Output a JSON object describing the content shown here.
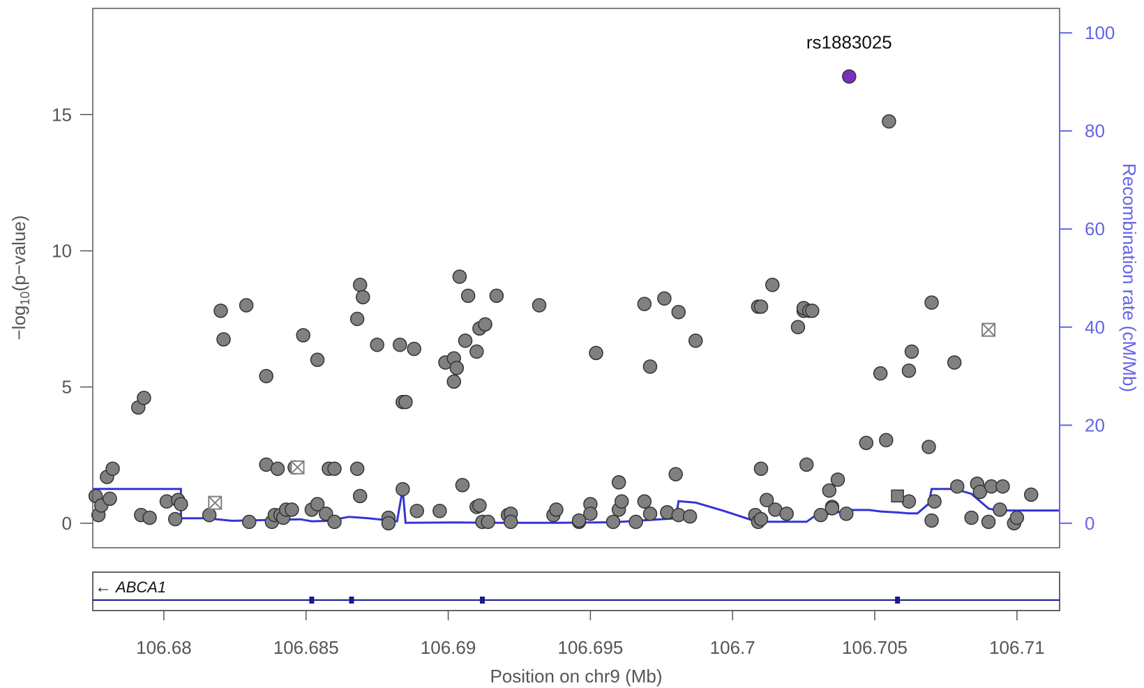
{
  "chart_data": {
    "type": "scatter",
    "title": "",
    "xlabel": "Position on chr9 (Mb)",
    "ylabel_left": "−log₁₀(p−value)",
    "ylabel_right": "Recombination rate (cM/Mb)",
    "xlim": [
      106.6775,
      106.7115
    ],
    "ylim_left": [
      -0.9,
      18.9
    ],
    "ylim_right": [
      -5,
      105
    ],
    "x_ticks": [
      106.68,
      106.685,
      106.69,
      106.695,
      106.7,
      106.705,
      106.71
    ],
    "x_tick_labels": [
      "106.68",
      "106.685",
      "106.69",
      "106.695",
      "106.7",
      "106.705",
      "106.71"
    ],
    "y_left_ticks": [
      0,
      5,
      10,
      15
    ],
    "y_left_tick_labels": [
      "0",
      "5",
      "10",
      "15"
    ],
    "y_right_ticks": [
      0,
      20,
      40,
      60,
      80,
      100
    ],
    "y_right_tick_labels": [
      "0",
      "20",
      "40",
      "60",
      "80",
      "100"
    ],
    "lead_snp": {
      "label": "rs1883025",
      "x": 106.7041,
      "y": 16.4
    },
    "colors": {
      "point": "#808080",
      "lead": "#7b2fbe",
      "recomb": "#3434d8",
      "right_axis": "#6464e6",
      "gene": "#1a1a8c",
      "frame": "#555555"
    },
    "gene": {
      "name": "ABCA1",
      "direction": "←",
      "start": 106.6775,
      "end": 106.7115,
      "exons": [
        106.6852,
        106.6866,
        106.6912,
        106.7058
      ]
    },
    "squares": [
      {
        "x": 106.7058,
        "y": 1.0
      }
    ],
    "crossed_squares": [
      {
        "x": 106.6818,
        "y": 0.75
      },
      {
        "x": 106.6847,
        "y": 2.05
      },
      {
        "x": 106.709,
        "y": 7.1
      }
    ],
    "points": [
      [
        106.6776,
        1.0
      ],
      [
        106.6777,
        0.3
      ],
      [
        106.6778,
        0.65
      ],
      [
        106.678,
        1.7
      ],
      [
        106.6781,
        0.9
      ],
      [
        106.6782,
        2.0
      ],
      [
        106.6791,
        4.25
      ],
      [
        106.6792,
        0.3
      ],
      [
        106.6793,
        4.6
      ],
      [
        106.6795,
        0.2
      ],
      [
        106.6801,
        0.8
      ],
      [
        106.6804,
        0.15
      ],
      [
        106.6805,
        0.85
      ],
      [
        106.6806,
        0.7
      ],
      [
        106.6816,
        0.3
      ],
      [
        106.682,
        7.8
      ],
      [
        106.6821,
        6.75
      ],
      [
        106.6829,
        8.0
      ],
      [
        106.683,
        0.05
      ],
      [
        106.6836,
        5.4
      ],
      [
        106.6836,
        2.15
      ],
      [
        106.6838,
        0.05
      ],
      [
        106.6839,
        0.3
      ],
      [
        106.684,
        2.0
      ],
      [
        106.6841,
        0.3
      ],
      [
        106.6842,
        0.2
      ],
      [
        106.6843,
        0.5
      ],
      [
        106.6845,
        0.5
      ],
      [
        106.6846,
        2.05
      ],
      [
        106.6849,
        6.9
      ],
      [
        106.6852,
        0.5
      ],
      [
        106.6854,
        0.7
      ],
      [
        106.6854,
        6.0
      ],
      [
        106.6857,
        0.35
      ],
      [
        106.6858,
        2.0
      ],
      [
        106.686,
        0.05
      ],
      [
        106.686,
        2.0
      ],
      [
        106.6868,
        2.0
      ],
      [
        106.6868,
        7.5
      ],
      [
        106.6869,
        8.75
      ],
      [
        106.6869,
        1.0
      ],
      [
        106.687,
        8.3
      ],
      [
        106.6875,
        6.55
      ],
      [
        106.6879,
        0.2
      ],
      [
        106.6879,
        0.0
      ],
      [
        106.6883,
        6.55
      ],
      [
        106.6884,
        4.45
      ],
      [
        106.6884,
        1.25
      ],
      [
        106.6885,
        4.45
      ],
      [
        106.6888,
        6.4
      ],
      [
        106.6889,
        0.45
      ],
      [
        106.6897,
        0.45
      ],
      [
        106.6899,
        5.9
      ],
      [
        106.6902,
        6.05
      ],
      [
        106.6902,
        5.2
      ],
      [
        106.6903,
        5.7
      ],
      [
        106.6904,
        9.05
      ],
      [
        106.6905,
        1.4
      ],
      [
        106.6906,
        6.7
      ],
      [
        106.6907,
        8.35
      ],
      [
        106.691,
        0.6
      ],
      [
        106.691,
        6.3
      ],
      [
        106.6911,
        7.15
      ],
      [
        106.6911,
        0.65
      ],
      [
        106.6912,
        0.05
      ],
      [
        106.6913,
        7.3
      ],
      [
        106.6914,
        0.05
      ],
      [
        106.6917,
        8.35
      ],
      [
        106.6921,
        0.3
      ],
      [
        106.6922,
        0.35
      ],
      [
        106.6922,
        0.05
      ],
      [
        106.6932,
        8.0
      ],
      [
        106.6937,
        0.3
      ],
      [
        106.6938,
        0.5
      ],
      [
        106.6946,
        0.05
      ],
      [
        106.6946,
        0.1
      ],
      [
        106.695,
        0.7
      ],
      [
        106.695,
        0.35
      ],
      [
        106.6952,
        6.25
      ],
      [
        106.6958,
        0.05
      ],
      [
        106.696,
        1.5
      ],
      [
        106.696,
        0.5
      ],
      [
        106.6961,
        0.8
      ],
      [
        106.6966,
        0.05
      ],
      [
        106.6969,
        8.05
      ],
      [
        106.6969,
        0.8
      ],
      [
        106.6971,
        5.75
      ],
      [
        106.6971,
        0.35
      ],
      [
        106.6976,
        8.25
      ],
      [
        106.6977,
        0.4
      ],
      [
        106.6977,
        0.4
      ],
      [
        106.698,
        1.8
      ],
      [
        106.6981,
        7.75
      ],
      [
        106.6981,
        0.3
      ],
      [
        106.6985,
        0.25
      ],
      [
        106.6987,
        6.7
      ],
      [
        106.7008,
        0.3
      ],
      [
        106.7009,
        7.95
      ],
      [
        106.7009,
        0.05
      ],
      [
        106.701,
        7.95
      ],
      [
        106.701,
        2.0
      ],
      [
        106.701,
        0.15
      ],
      [
        106.7012,
        0.85
      ],
      [
        106.7014,
        8.75
      ],
      [
        106.7015,
        0.5
      ],
      [
        106.7019,
        0.35
      ],
      [
        106.7023,
        7.2
      ],
      [
        106.7025,
        7.8
      ],
      [
        106.7025,
        7.9
      ],
      [
        106.7026,
        2.15
      ],
      [
        106.7027,
        7.8
      ],
      [
        106.7028,
        7.8
      ],
      [
        106.7031,
        0.3
      ],
      [
        106.7034,
        1.2
      ],
      [
        106.7035,
        0.6
      ],
      [
        106.7035,
        0.55
      ],
      [
        106.7037,
        1.6
      ],
      [
        106.704,
        0.35
      ],
      [
        106.7047,
        2.95
      ],
      [
        106.7052,
        5.5
      ],
      [
        106.7054,
        3.05
      ],
      [
        106.7055,
        14.75
      ],
      [
        106.7062,
        0.8
      ],
      [
        106.7062,
        5.6
      ],
      [
        106.7063,
        6.3
      ],
      [
        106.7069,
        2.8
      ],
      [
        106.707,
        8.1
      ],
      [
        106.707,
        0.1
      ],
      [
        106.7071,
        0.8
      ],
      [
        106.7078,
        5.9
      ],
      [
        106.7079,
        1.35
      ],
      [
        106.7084,
        0.2
      ],
      [
        106.7086,
        1.45
      ],
      [
        106.7087,
        1.15
      ],
      [
        106.709,
        0.05
      ],
      [
        106.7091,
        1.35
      ],
      [
        106.7094,
        0.5
      ],
      [
        106.7095,
        1.35
      ],
      [
        106.7099,
        0.0
      ],
      [
        106.71,
        0.2
      ],
      [
        106.7105,
        1.05
      ]
    ],
    "recomb_rate": [
      [
        106.6775,
        7.0
      ],
      [
        106.6806,
        7.0
      ],
      [
        106.6806,
        1.0
      ],
      [
        106.6815,
        1.0
      ],
      [
        106.6824,
        0.5
      ],
      [
        106.6848,
        0.8
      ],
      [
        106.6852,
        0.4
      ],
      [
        106.6858,
        0.5
      ],
      [
        106.6865,
        1.3
      ],
      [
        106.6872,
        1.0
      ],
      [
        106.6882,
        0.4
      ],
      [
        106.6884,
        7.0
      ],
      [
        106.6885,
        0.1
      ],
      [
        106.6902,
        0.15
      ],
      [
        106.6918,
        0.1
      ],
      [
        106.6938,
        0.1
      ],
      [
        106.6958,
        0.2
      ],
      [
        106.698,
        1.0
      ],
      [
        106.6981,
        4.5
      ],
      [
        106.6987,
        4.2
      ],
      [
        106.6997,
        2.5
      ],
      [
        106.7007,
        0.6
      ],
      [
        106.7012,
        0.3
      ],
      [
        106.7026,
        0.3
      ],
      [
        106.7029,
        1.5
      ],
      [
        106.7035,
        2.0
      ],
      [
        106.7041,
        2.7
      ],
      [
        106.7048,
        2.7
      ],
      [
        106.7052,
        2.4
      ],
      [
        106.7058,
        2.2
      ],
      [
        106.7062,
        2.0
      ],
      [
        106.7065,
        2.0
      ],
      [
        106.7069,
        4.0
      ],
      [
        106.707,
        7.0
      ],
      [
        106.7078,
        7.0
      ],
      [
        106.7084,
        6.0
      ],
      [
        106.709,
        3.0
      ],
      [
        106.7093,
        2.6
      ],
      [
        106.7115,
        2.6
      ]
    ]
  }
}
